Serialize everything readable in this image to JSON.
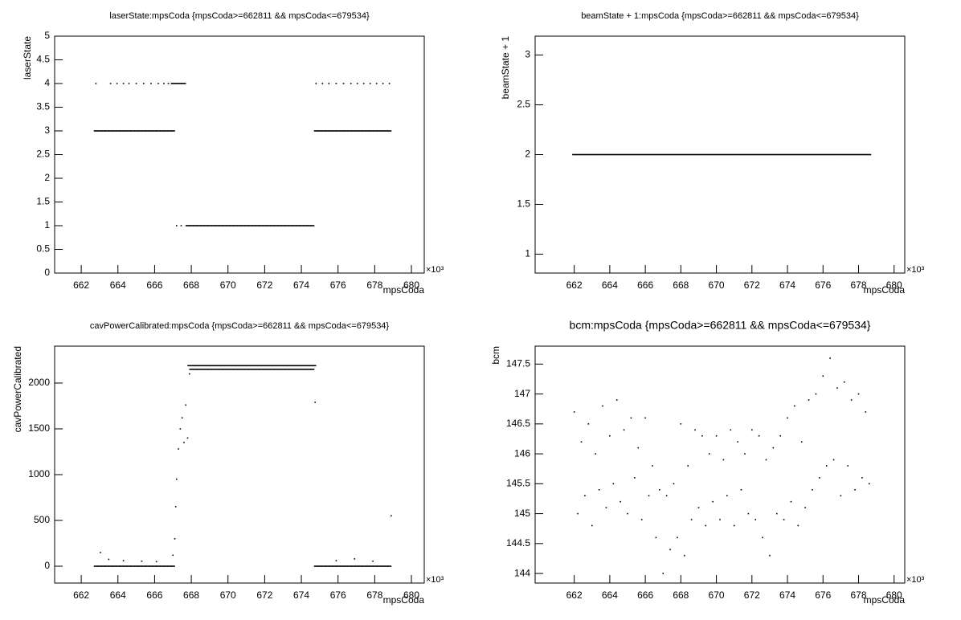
{
  "chart_data": [
    {
      "type": "scatter",
      "title": "laserState:mpsCoda {mpsCoda>=662811 && mpsCoda<=679534}",
      "ylabel": "laserState",
      "xlabel": "mpsCoda",
      "x_exponent": "×10³",
      "xlim": [
        660.55,
        680.7
      ],
      "xticks": [
        662,
        664,
        666,
        668,
        670,
        672,
        674,
        676,
        678,
        680
      ],
      "ylim": [
        0,
        5
      ],
      "yticks": [
        0,
        0.5,
        1,
        1.5,
        2,
        2.5,
        3,
        3.5,
        4,
        4.5,
        5
      ],
      "color": "#000000",
      "x": [
        662.8,
        663,
        663.2,
        663.4,
        663.6,
        663.8,
        664,
        664.2,
        664.4,
        664.6,
        664.8,
        665,
        665.2,
        665.4,
        665.6,
        665.8,
        666,
        666.2,
        666.4,
        666.6,
        666.8,
        667,
        662.8,
        663.6,
        663.95,
        664.3,
        664.6,
        665,
        665.4,
        665.8,
        666.2,
        666.5,
        666.75,
        667,
        667.2,
        667.4,
        667.6,
        667.2,
        667.45,
        667.8,
        668,
        668.2,
        668.4,
        668.6,
        668.8,
        669,
        669.2,
        669.4,
        669.6,
        669.8,
        670,
        670.2,
        670.4,
        670.6,
        670.8,
        671,
        671.2,
        671.4,
        671.6,
        671.8,
        672,
        672.2,
        672.4,
        672.6,
        672.8,
        673,
        673.2,
        673.4,
        673.6,
        673.8,
        674,
        674.2,
        674.4,
        674.6,
        674.8,
        675,
        675.2,
        675.4,
        675.6,
        675.8,
        676,
        676.2,
        676.4,
        676.6,
        676.8,
        677,
        677.2,
        677.4,
        677.6,
        677.8,
        678,
        678.2,
        678.4,
        678.6,
        678.8,
        674.8,
        675.15,
        675.5,
        675.9,
        676.3,
        676.7,
        677.05,
        677.4,
        677.75,
        678.1,
        678.45,
        678.8
      ],
      "values": [
        3,
        3,
        3,
        3,
        3,
        3,
        3,
        3,
        3,
        3,
        3,
        3,
        3,
        3,
        3,
        3,
        3,
        3,
        3,
        3,
        3,
        3,
        4,
        4,
        4,
        4,
        4,
        4,
        4,
        4,
        4,
        4,
        4,
        4,
        4,
        4,
        4,
        1,
        1,
        1,
        1,
        1,
        1,
        1,
        1,
        1,
        1,
        1,
        1,
        1,
        1,
        1,
        1,
        1,
        1,
        1,
        1,
        1,
        1,
        1,
        1,
        1,
        1,
        1,
        1,
        1,
        1,
        1,
        1,
        1,
        1,
        1,
        1,
        1,
        3,
        3,
        3,
        3,
        3,
        3,
        3,
        3,
        3,
        3,
        3,
        3,
        3,
        3,
        3,
        3,
        3,
        3,
        3,
        3,
        3,
        4,
        4,
        4,
        4,
        4,
        4,
        4,
        4,
        4,
        4,
        4,
        4
      ]
    },
    {
      "type": "scatter",
      "title": "beamState + 1:mpsCoda {mpsCoda>=662811 && mpsCoda<=679534}",
      "ylabel": "beamState + 1",
      "xlabel": "mpsCoda",
      "x_exponent": "×10³",
      "xlim": [
        659.8,
        680.6
      ],
      "xticks": [
        662,
        664,
        666,
        668,
        670,
        672,
        674,
        676,
        678,
        680
      ],
      "ylim": [
        0.81,
        3.19
      ],
      "yticks": [
        1,
        1.5,
        2,
        2.5,
        3
      ],
      "color": "#000000",
      "x": [
        662,
        662.2,
        662.4,
        662.6,
        662.8,
        663,
        663.2,
        663.4,
        663.6,
        663.8,
        664,
        664.2,
        664.4,
        664.6,
        664.8,
        665,
        665.2,
        665.4,
        665.6,
        665.8,
        666,
        666.2,
        666.4,
        666.6,
        666.8,
        667,
        667.2,
        667.4,
        667.6,
        667.8,
        668,
        668.2,
        668.4,
        668.6,
        668.8,
        669,
        669.2,
        669.4,
        669.6,
        669.8,
        670,
        670.2,
        670.4,
        670.6,
        670.8,
        671,
        671.2,
        671.4,
        671.6,
        671.8,
        672,
        672.2,
        672.4,
        672.6,
        672.8,
        673,
        673.2,
        673.4,
        673.6,
        673.8,
        674,
        674.2,
        674.4,
        674.6,
        674.8,
        675,
        675.2,
        675.4,
        675.6,
        675.8,
        676,
        676.2,
        676.4,
        676.6,
        676.8,
        677,
        677.2,
        677.4,
        677.6,
        677.8,
        678,
        678.2,
        678.4,
        678.6
      ],
      "values": [
        2,
        2,
        2,
        2,
        2,
        2,
        2,
        2,
        2,
        2,
        2,
        2,
        2,
        2,
        2,
        2,
        2,
        2,
        2,
        2,
        2,
        2,
        2,
        2,
        2,
        2,
        2,
        2,
        2,
        2,
        2,
        2,
        2,
        2,
        2,
        2,
        2,
        2,
        2,
        2,
        2,
        2,
        2,
        2,
        2,
        2,
        2,
        2,
        2,
        2,
        2,
        2,
        2,
        2,
        2,
        2,
        2,
        2,
        2,
        2,
        2,
        2,
        2,
        2,
        2,
        2,
        2,
        2,
        2,
        2,
        2,
        2,
        2,
        2,
        2,
        2,
        2,
        2,
        2,
        2,
        2,
        2,
        2,
        2
      ]
    },
    {
      "type": "scatter",
      "title": "cavPowerCalibrated:mpsCoda {mpsCoda>=662811 && mpsCoda<=679534}",
      "ylabel": "cavPowerCalibrated",
      "xlabel": "mpsCoda",
      "x_exponent": "×10³",
      "xlim": [
        660.55,
        680.7
      ],
      "xticks": [
        662,
        664,
        666,
        668,
        670,
        672,
        674,
        676,
        678,
        680
      ],
      "ylim": [
        -184,
        2403
      ],
      "yticks": [
        0,
        500,
        1000,
        1500,
        2000
      ],
      "color": "#000000",
      "x": [
        662.8,
        663,
        663.2,
        663.4,
        663.6,
        663.8,
        664,
        664.2,
        664.4,
        664.6,
        664.8,
        665,
        665.2,
        665.4,
        665.6,
        665.8,
        666,
        666.2,
        666.4,
        666.6,
        666.8,
        667,
        663.05,
        663.5,
        664.3,
        665.3,
        666.1,
        667,
        667.1,
        667.15,
        667.2,
        667.3,
        667.4,
        667.5,
        667.6,
        667.7,
        667.8,
        667.9,
        667.9,
        668.1,
        668.3,
        668.5,
        668.7,
        668.9,
        669.1,
        669.3,
        669.5,
        669.7,
        669.9,
        670.1,
        670.3,
        670.5,
        670.7,
        670.9,
        671.1,
        671.3,
        671.5,
        671.7,
        671.9,
        672.1,
        672.3,
        672.5,
        672.7,
        672.9,
        673.1,
        673.3,
        673.5,
        673.7,
        673.9,
        674.1,
        674.3,
        674.5,
        674.7,
        668,
        668.2,
        668.4,
        668.6,
        668.8,
        669,
        669.2,
        669.4,
        669.6,
        669.8,
        670,
        670.2,
        670.4,
        670.6,
        670.8,
        671,
        671.2,
        671.4,
        671.6,
        671.8,
        672,
        672.2,
        672.4,
        672.6,
        672.8,
        673,
        673.2,
        673.4,
        673.6,
        673.8,
        674,
        674.2,
        674.4,
        674.6,
        674.75,
        674.8,
        675,
        675.2,
        675.4,
        675.6,
        675.8,
        676,
        676.2,
        676.4,
        676.6,
        676.8,
        677,
        677.2,
        677.4,
        677.6,
        677.8,
        678,
        678.2,
        678.4,
        678.6,
        678.8,
        675.9,
        676.9,
        677.9,
        678.9
      ],
      "values": [
        0,
        0,
        0,
        0,
        0,
        0,
        0,
        0,
        0,
        0,
        0,
        0,
        0,
        0,
        0,
        0,
        0,
        0,
        0,
        0,
        0,
        0,
        150,
        75,
        60,
        55,
        50,
        120,
        300,
        650,
        950,
        1280,
        1500,
        1620,
        1350,
        1760,
        1400,
        2100,
        2190,
        2190,
        2190,
        2190,
        2190,
        2190,
        2190,
        2190,
        2190,
        2190,
        2190,
        2190,
        2190,
        2190,
        2190,
        2190,
        2190,
        2190,
        2190,
        2190,
        2190,
        2190,
        2190,
        2190,
        2190,
        2190,
        2190,
        2190,
        2190,
        2190,
        2190,
        2190,
        2190,
        2190,
        2190,
        2150,
        2150,
        2150,
        2150,
        2150,
        2150,
        2150,
        2150,
        2150,
        2150,
        2150,
        2150,
        2150,
        2150,
        2150,
        2150,
        2150,
        2150,
        2150,
        2150,
        2150,
        2150,
        2150,
        2150,
        2150,
        2150,
        2150,
        2150,
        2150,
        2150,
        2150,
        2150,
        2150,
        2150,
        1790,
        0,
        0,
        0,
        0,
        0,
        0,
        0,
        0,
        0,
        0,
        0,
        0,
        0,
        0,
        0,
        0,
        0,
        0,
        0,
        0,
        0,
        60,
        80,
        55,
        550
      ]
    },
    {
      "type": "scatter",
      "title": "bcm:mpsCoda {mpsCoda>=662811 && mpsCoda<=679534}",
      "ylabel": "bcm",
      "xlabel": "mpsCoda",
      "x_exponent": "×10³",
      "xlim": [
        659.8,
        680.6
      ],
      "xticks": [
        662,
        664,
        666,
        668,
        670,
        672,
        674,
        676,
        678,
        680
      ],
      "ylim": [
        143.84,
        147.8
      ],
      "yticks": [
        144,
        144.5,
        145,
        145.5,
        146,
        146.5,
        147,
        147.5
      ],
      "color": "#000000",
      "x": [
        662,
        662.2,
        662.4,
        662.6,
        662.8,
        663,
        663.2,
        663.4,
        663.6,
        663.8,
        664,
        664.2,
        664.4,
        664.6,
        664.8,
        665,
        665.2,
        665.4,
        665.6,
        665.8,
        666,
        666.2,
        666.4,
        666.6,
        666.8,
        667,
        667.2,
        667.4,
        667.6,
        667.8,
        668,
        668.2,
        668.4,
        668.6,
        668.8,
        669,
        669.2,
        669.4,
        669.6,
        669.8,
        670,
        670.2,
        670.4,
        670.6,
        670.8,
        671,
        671.2,
        671.4,
        671.6,
        671.8,
        672,
        672.2,
        672.4,
        672.6,
        672.8,
        673,
        673.2,
        673.4,
        673.6,
        673.8,
        674,
        674.2,
        674.4,
        674.6,
        674.8,
        675,
        675.2,
        675.4,
        675.6,
        675.8,
        676,
        676.2,
        676.4,
        676.6,
        676.8,
        677,
        677.2,
        677.4,
        677.6,
        677.8,
        678,
        678.2,
        678.4,
        678.6
      ],
      "values": [
        146.7,
        145.0,
        146.2,
        145.3,
        146.5,
        144.8,
        146.0,
        145.4,
        146.8,
        145.1,
        146.3,
        145.5,
        146.9,
        145.2,
        146.4,
        145.0,
        146.6,
        145.6,
        146.1,
        144.9,
        146.6,
        145.3,
        145.8,
        144.6,
        145.4,
        144.0,
        145.3,
        144.4,
        145.5,
        144.6,
        146.5,
        144.3,
        145.8,
        144.9,
        146.4,
        145.1,
        146.3,
        144.8,
        146.0,
        145.2,
        146.3,
        144.9,
        145.9,
        145.3,
        146.4,
        144.8,
        146.2,
        145.4,
        146.0,
        145.0,
        146.4,
        144.9,
        146.3,
        144.6,
        145.9,
        144.3,
        146.1,
        145.0,
        146.3,
        144.9,
        146.6,
        145.2,
        146.8,
        144.8,
        146.2,
        145.1,
        146.9,
        145.4,
        147.0,
        145.6,
        147.3,
        145.8,
        147.6,
        145.9,
        147.1,
        145.3,
        147.2,
        145.8,
        146.9,
        145.4,
        147.0,
        145.6,
        146.7,
        145.5
      ]
    }
  ]
}
